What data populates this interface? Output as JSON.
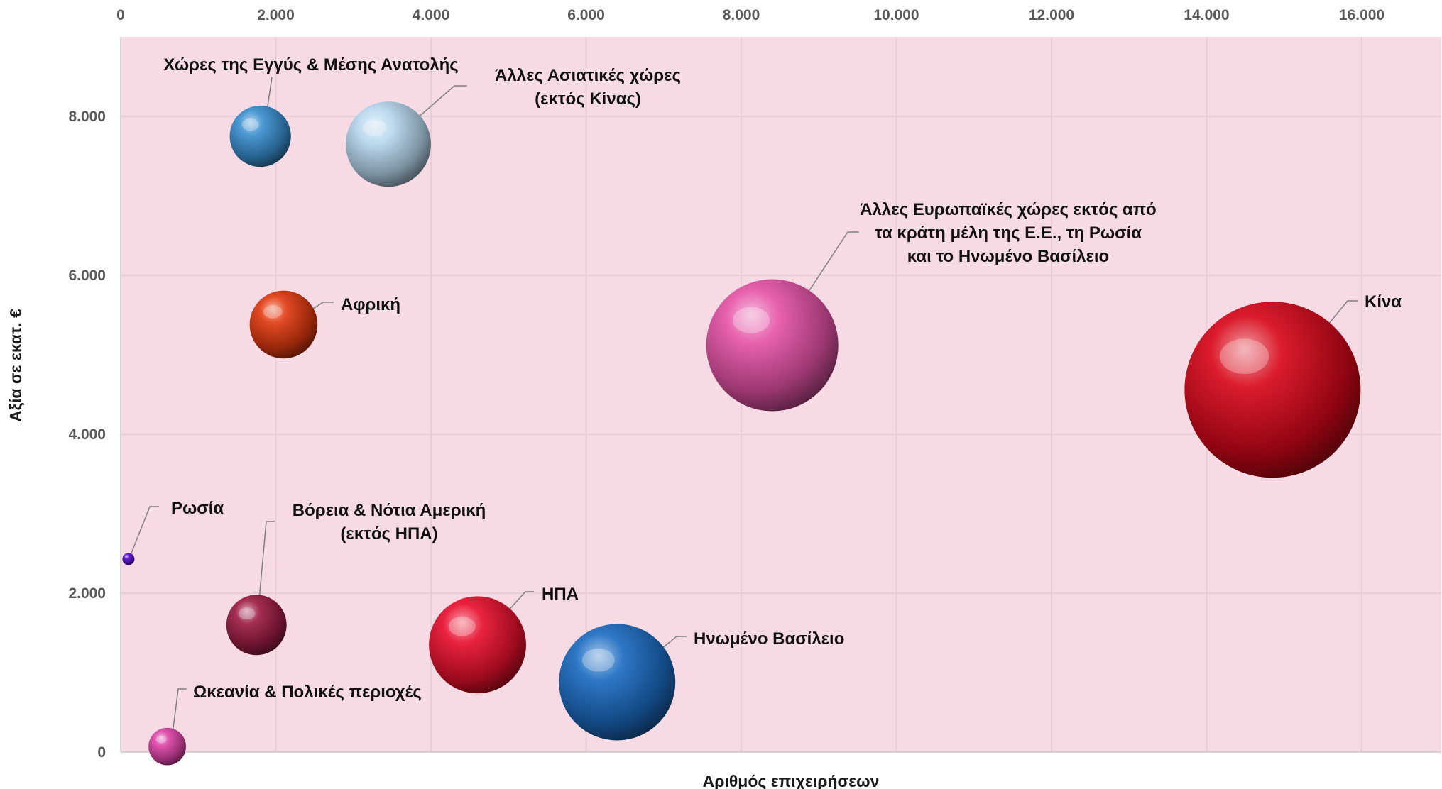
{
  "chart_data": {
    "type": "bubble",
    "title": "",
    "xlabel": "Αριθμός επιχειρήσεων",
    "ylabel": "Αξία σε εκατ. €",
    "xlim": [
      0,
      17000
    ],
    "ylim": [
      0,
      9000
    ],
    "x_ticks": [
      0,
      2000,
      4000,
      6000,
      8000,
      10000,
      12000,
      14000,
      16000
    ],
    "x_tick_labels": [
      "0",
      "2.000",
      "4.000",
      "6.000",
      "8.000",
      "10.000",
      "12.000",
      "14.000",
      "16.000"
    ],
    "y_ticks": [
      0,
      2000,
      4000,
      6000,
      8000
    ],
    "y_tick_labels": [
      "0",
      "2.000",
      "4.000",
      "6.000",
      "8.000"
    ],
    "x_axis_position": "top",
    "grid": true,
    "legend": "none",
    "plot_background": "#f6dbe4",
    "points": [
      {
        "label": [
          "Χώρες της Εγγύς & Μέσης Ανατολής"
        ],
        "x": 1800,
        "y": 7750,
        "size": 7750,
        "color": "#3a8fd0"
      },
      {
        "label": [
          "Άλλες Ασιατικές χώρες",
          "(εκτός Κίνας)"
        ],
        "x": 3450,
        "y": 7650,
        "size": 15000,
        "color": "#b8d8ee"
      },
      {
        "label": [
          "Αφρική"
        ],
        "x": 2100,
        "y": 5380,
        "size": 9500,
        "color": "#e03a10"
      },
      {
        "label": [
          "Άλλες Ευρωπαϊκές χώρες εκτός από",
          "τα κράτη μέλη της Ε.Ε., τη Ρωσία",
          "και το Ηνωμένο Βασίλειο"
        ],
        "x": 8400,
        "y": 5120,
        "size": 36000,
        "color": "#e553a6"
      },
      {
        "label": [
          "Κίνα"
        ],
        "x": 14850,
        "y": 4560,
        "size": 64000,
        "color": "#d8081a"
      },
      {
        "label": [
          "Ρωσία"
        ],
        "x": 100,
        "y": 2430,
        "size": 300,
        "color": "#5a10cc"
      },
      {
        "label": [
          "Βόρεια & Νότια Αμερική",
          "(εκτός ΗΠΑ)"
        ],
        "x": 1750,
        "y": 1600,
        "size": 7500,
        "color": "#9c1c42"
      },
      {
        "label": [
          "ΗΠΑ"
        ],
        "x": 4600,
        "y": 1350,
        "size": 19500,
        "color": "#e8102e"
      },
      {
        "label": [
          "Ηνωμένο Βασίλειο"
        ],
        "x": 6400,
        "y": 880,
        "size": 28000,
        "color": "#1c6cc2"
      },
      {
        "label": [
          "Ωκεανία & Πολικές περιοχές"
        ],
        "x": 600,
        "y": 70,
        "size": 2900,
        "color": "#dd44a8"
      }
    ]
  }
}
